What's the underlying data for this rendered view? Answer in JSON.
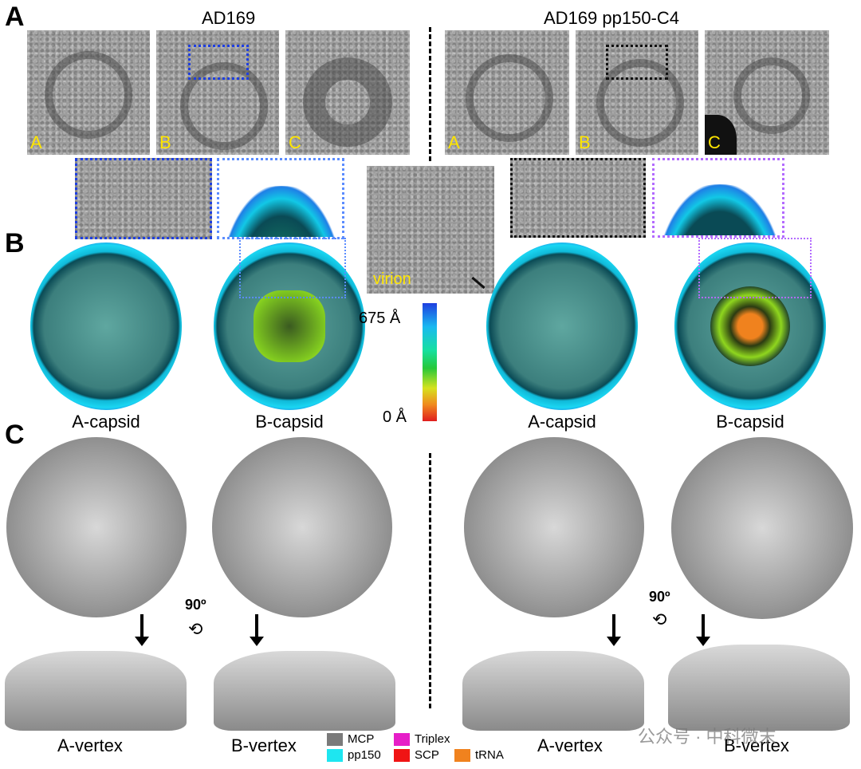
{
  "panel_letters": {
    "a": "A",
    "b": "B",
    "c": "C"
  },
  "headers": {
    "left": "AD169",
    "right": "AD169 pp150-C4"
  },
  "em_panels": {
    "left": [
      "A",
      "B",
      "C"
    ],
    "right": [
      "A",
      "B",
      "C"
    ]
  },
  "virion_label": "virion",
  "colorbar": {
    "top_label": "675 Å",
    "bottom_label": "0 Å"
  },
  "capsid_labels": [
    "A-capsid",
    "B-capsid",
    "A-capsid",
    "B-capsid"
  ],
  "rotation_label": "90º",
  "vertex_labels": [
    "A-vertex",
    "B-vertex",
    "A-vertex",
    "B-vertex"
  ],
  "legend": [
    {
      "label": "MCP",
      "color": "#7a7a7a"
    },
    {
      "label": "Triplex",
      "color": "#e61ec8"
    },
    {
      "label": "pp150",
      "color": "#1ee6f0"
    },
    {
      "label": "SCP",
      "color": "#f01414"
    },
    {
      "label": "tRNA",
      "color": "#f0821e"
    }
  ],
  "watermark": "公众号 · 中科微末",
  "colors": {
    "zoom_blue": "#1f3fe0",
    "zoom_black": "#111111",
    "zoom_purple": "#b36bff",
    "yellow_label": "#ffe600"
  }
}
